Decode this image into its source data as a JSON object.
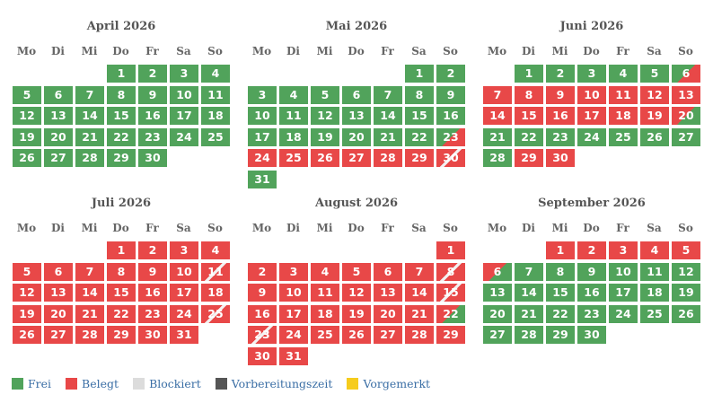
{
  "colors": {
    "free": "#51a35b",
    "booked": "#e84848",
    "blocked": "#dcdcdc",
    "prep": "#555555",
    "reserved": "#f6cc1d"
  },
  "weekdays": [
    "Mo",
    "Di",
    "Mi",
    "Do",
    "Fr",
    "Sa",
    "So"
  ],
  "months": [
    {
      "title": "April 2026",
      "start": 3,
      "days": 30,
      "booked": [],
      "arrivals": [],
      "departures": [],
      "turnovers": []
    },
    {
      "title": "Mai 2026",
      "start": 5,
      "days": 31,
      "booked": [
        24,
        25,
        26,
        27,
        28,
        29
      ],
      "arrivals": [
        23
      ],
      "departures": [],
      "turnovers": [
        30
      ]
    },
    {
      "title": "Juni 2026",
      "start": 1,
      "days": 30,
      "booked": [
        7,
        8,
        9,
        10,
        11,
        12,
        13,
        14,
        15,
        16,
        17,
        18,
        19,
        29,
        30
      ],
      "arrivals": [
        6
      ],
      "departures": [
        20
      ],
      "turnovers": []
    },
    {
      "title": "Juli 2026",
      "start": 3,
      "days": 31,
      "booked": [
        1,
        2,
        3,
        4,
        5,
        6,
        7,
        8,
        9,
        10,
        12,
        13,
        14,
        15,
        16,
        17,
        18,
        19,
        20,
        21,
        22,
        23,
        24,
        26,
        27,
        28,
        29,
        30,
        31
      ],
      "arrivals": [],
      "departures": [],
      "turnovers": [
        11,
        25
      ]
    },
    {
      "title": "August 2026",
      "start": 6,
      "days": 31,
      "booked": [
        1,
        2,
        3,
        4,
        5,
        6,
        7,
        9,
        10,
        11,
        12,
        13,
        14,
        16,
        17,
        18,
        19,
        20,
        21,
        24,
        25,
        26,
        27,
        28,
        29,
        30,
        31
      ],
      "arrivals": [],
      "departures": [
        22
      ],
      "turnovers": [
        8,
        15,
        23
      ]
    },
    {
      "title": "September 2026",
      "start": 2,
      "days": 30,
      "booked": [
        1,
        2,
        3,
        4,
        5
      ],
      "arrivals": [],
      "departures": [
        6
      ],
      "turnovers": []
    }
  ],
  "legend": [
    {
      "label": "Frei",
      "color": "#51a35b"
    },
    {
      "label": "Belegt",
      "color": "#e84848"
    },
    {
      "label": "Blockiert",
      "color": "#dcdcdc"
    },
    {
      "label": "Vorbereitungszeit",
      "color": "#555555"
    },
    {
      "label": "Vorgemerkt",
      "color": "#f6cc1d"
    }
  ]
}
